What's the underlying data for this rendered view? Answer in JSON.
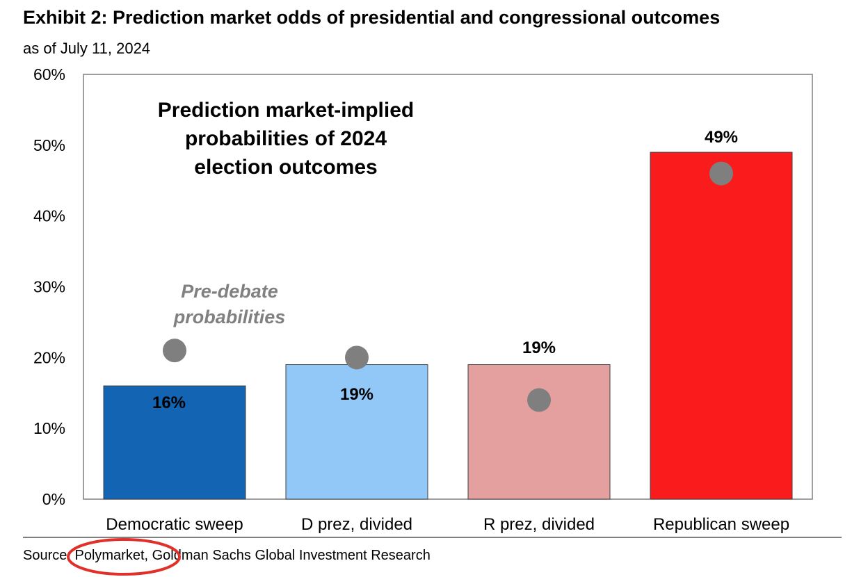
{
  "header": {
    "title": "Exhibit 2: Prediction market odds of presidential and congressional outcomes",
    "subtitle": "as of July 11, 2024"
  },
  "chart_data": {
    "type": "bar",
    "title": "Prediction market-implied probabilities of 2024 election outcomes",
    "title_lines": [
      "Prediction market-implied",
      "probabilities of 2024",
      "election outcomes"
    ],
    "categories": [
      "Democratic sweep",
      "D prez, divided",
      "R prez, divided",
      "Republican sweep"
    ],
    "series": [
      {
        "name": "Prediction market-implied probability",
        "values": [
          16,
          19,
          19,
          49
        ],
        "colors": [
          "#1464b4",
          "#91c8f8",
          "#e4a09e",
          "#fa1c1c"
        ]
      },
      {
        "name": "Pre-debate probabilities",
        "values": [
          21,
          20,
          14,
          46
        ],
        "color": "#7f7f7f",
        "marker": "circle"
      }
    ],
    "data_labels": [
      "16%",
      "19%",
      "19%",
      "49%"
    ],
    "annotation_lines": [
      "Pre-debate",
      "probabilities"
    ],
    "ylim": [
      0,
      60
    ],
    "yticks": [
      0,
      10,
      20,
      30,
      40,
      50,
      60
    ],
    "ytick_labels": [
      "0%",
      "10%",
      "20%",
      "30%",
      "40%",
      "50%",
      "60%"
    ],
    "xlabel": "",
    "ylabel": "",
    "grid": false
  },
  "footer": {
    "source": "Source: Polymarket, Goldman Sachs Global Investment Research",
    "highlight_color": "#e0302a"
  }
}
